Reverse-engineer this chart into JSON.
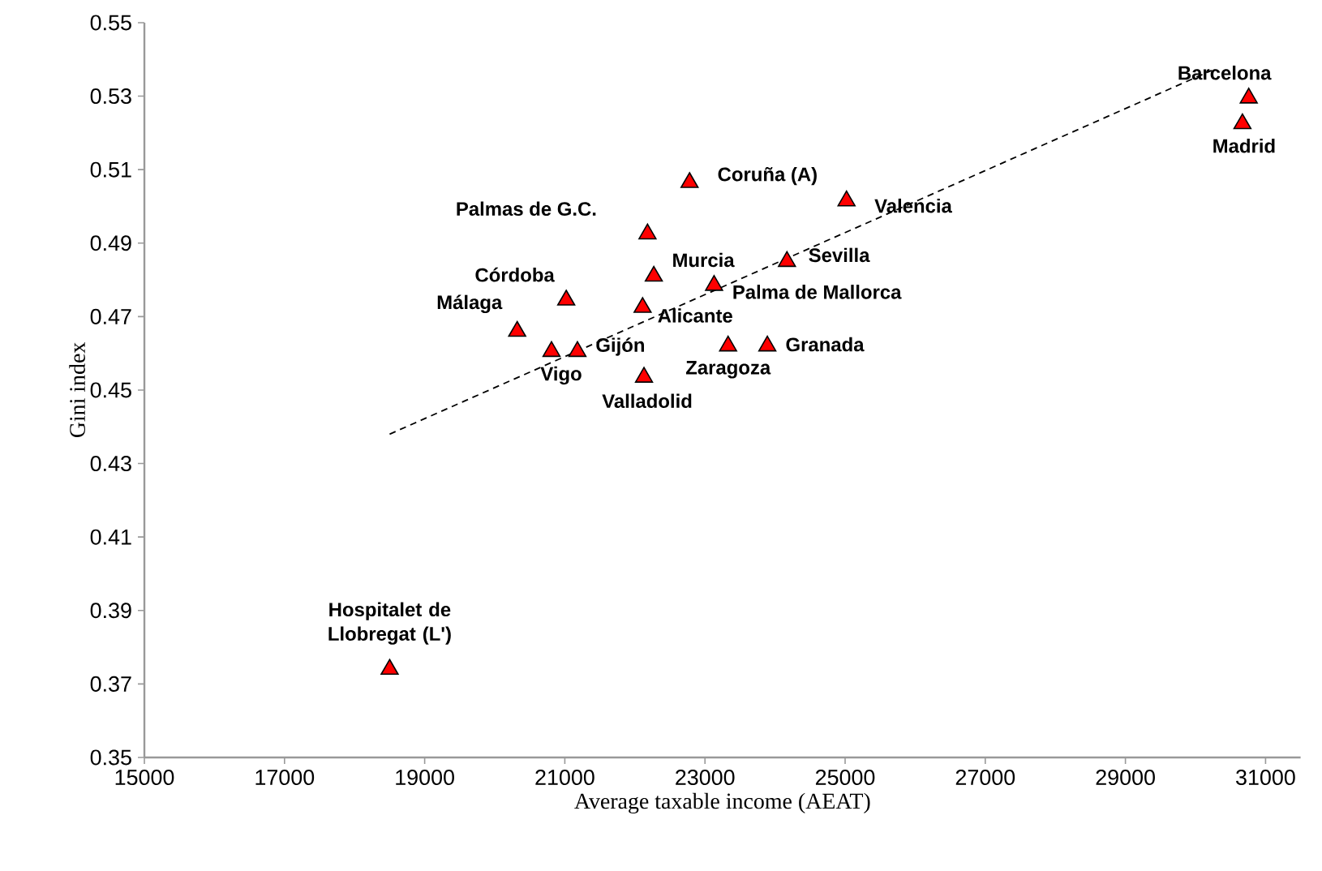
{
  "chart_data": {
    "type": "scatter",
    "xlabel": "Average taxable income (AEAT)",
    "ylabel": "Gini index",
    "xlim": [
      15000,
      31500
    ],
    "ylim": [
      0.35,
      0.55
    ],
    "xticks": [
      15000,
      17000,
      19000,
      21000,
      23000,
      25000,
      27000,
      29000,
      31000
    ],
    "yticks": [
      0.35,
      0.37,
      0.39,
      0.41,
      0.43,
      0.45,
      0.47,
      0.49,
      0.51,
      0.53,
      0.55
    ],
    "grid": false,
    "marker": "triangle",
    "series": [
      {
        "color": "#ff0000",
        "x": [
          18500,
          20320,
          21020,
          20810,
          21180,
          22180,
          22270,
          22110,
          22130,
          22780,
          25020,
          24170,
          23130,
          23330,
          23890,
          30760,
          30670
        ],
        "values": [
          0.374,
          0.466,
          0.4745,
          0.4605,
          0.4605,
          0.4925,
          0.481,
          0.4725,
          0.4535,
          0.5065,
          0.5015,
          0.485,
          0.4785,
          0.462,
          0.462,
          0.5295,
          0.5225
        ]
      },
      {
        "type": "line",
        "color": "#000000",
        "line_style": "dashed",
        "marker": "none",
        "x": [
          18500,
          30230
        ],
        "values": [
          0.438,
          0.537
        ]
      }
    ],
    "annotations": [
      {
        "text": "Hospitalet de Llobregat (L')",
        "x": 18500,
        "y": 0.374
      },
      {
        "text": "Málaga",
        "x": 20320,
        "y": 0.466
      },
      {
        "text": "Córdoba",
        "x": 21020,
        "y": 0.4745
      },
      {
        "text": "Vigo",
        "x": 20810,
        "y": 0.4605
      },
      {
        "text": "Gijón",
        "x": 21180,
        "y": 0.4605
      },
      {
        "text": "Palmas de G.C.",
        "x": 22180,
        "y": 0.4925
      },
      {
        "text": "Murcia",
        "x": 22270,
        "y": 0.481
      },
      {
        "text": "Alicante",
        "x": 22110,
        "y": 0.4725
      },
      {
        "text": "Valladolid",
        "x": 22130,
        "y": 0.4535
      },
      {
        "text": "Coruña  (A)",
        "x": 22780,
        "y": 0.5065
      },
      {
        "text": "Valencia",
        "x": 25020,
        "y": 0.5015
      },
      {
        "text": "Sevilla",
        "x": 24170,
        "y": 0.485
      },
      {
        "text": "Palma de Mallorca",
        "x": 23130,
        "y": 0.4785
      },
      {
        "text": "Zaragoza",
        "x": 23330,
        "y": 0.462
      },
      {
        "text": "Granada",
        "x": 23890,
        "y": 0.462
      },
      {
        "text": "Barcelona",
        "x": 30760,
        "y": 0.5295
      },
      {
        "text": "Madrid",
        "x": 30670,
        "y": 0.5225
      }
    ]
  }
}
